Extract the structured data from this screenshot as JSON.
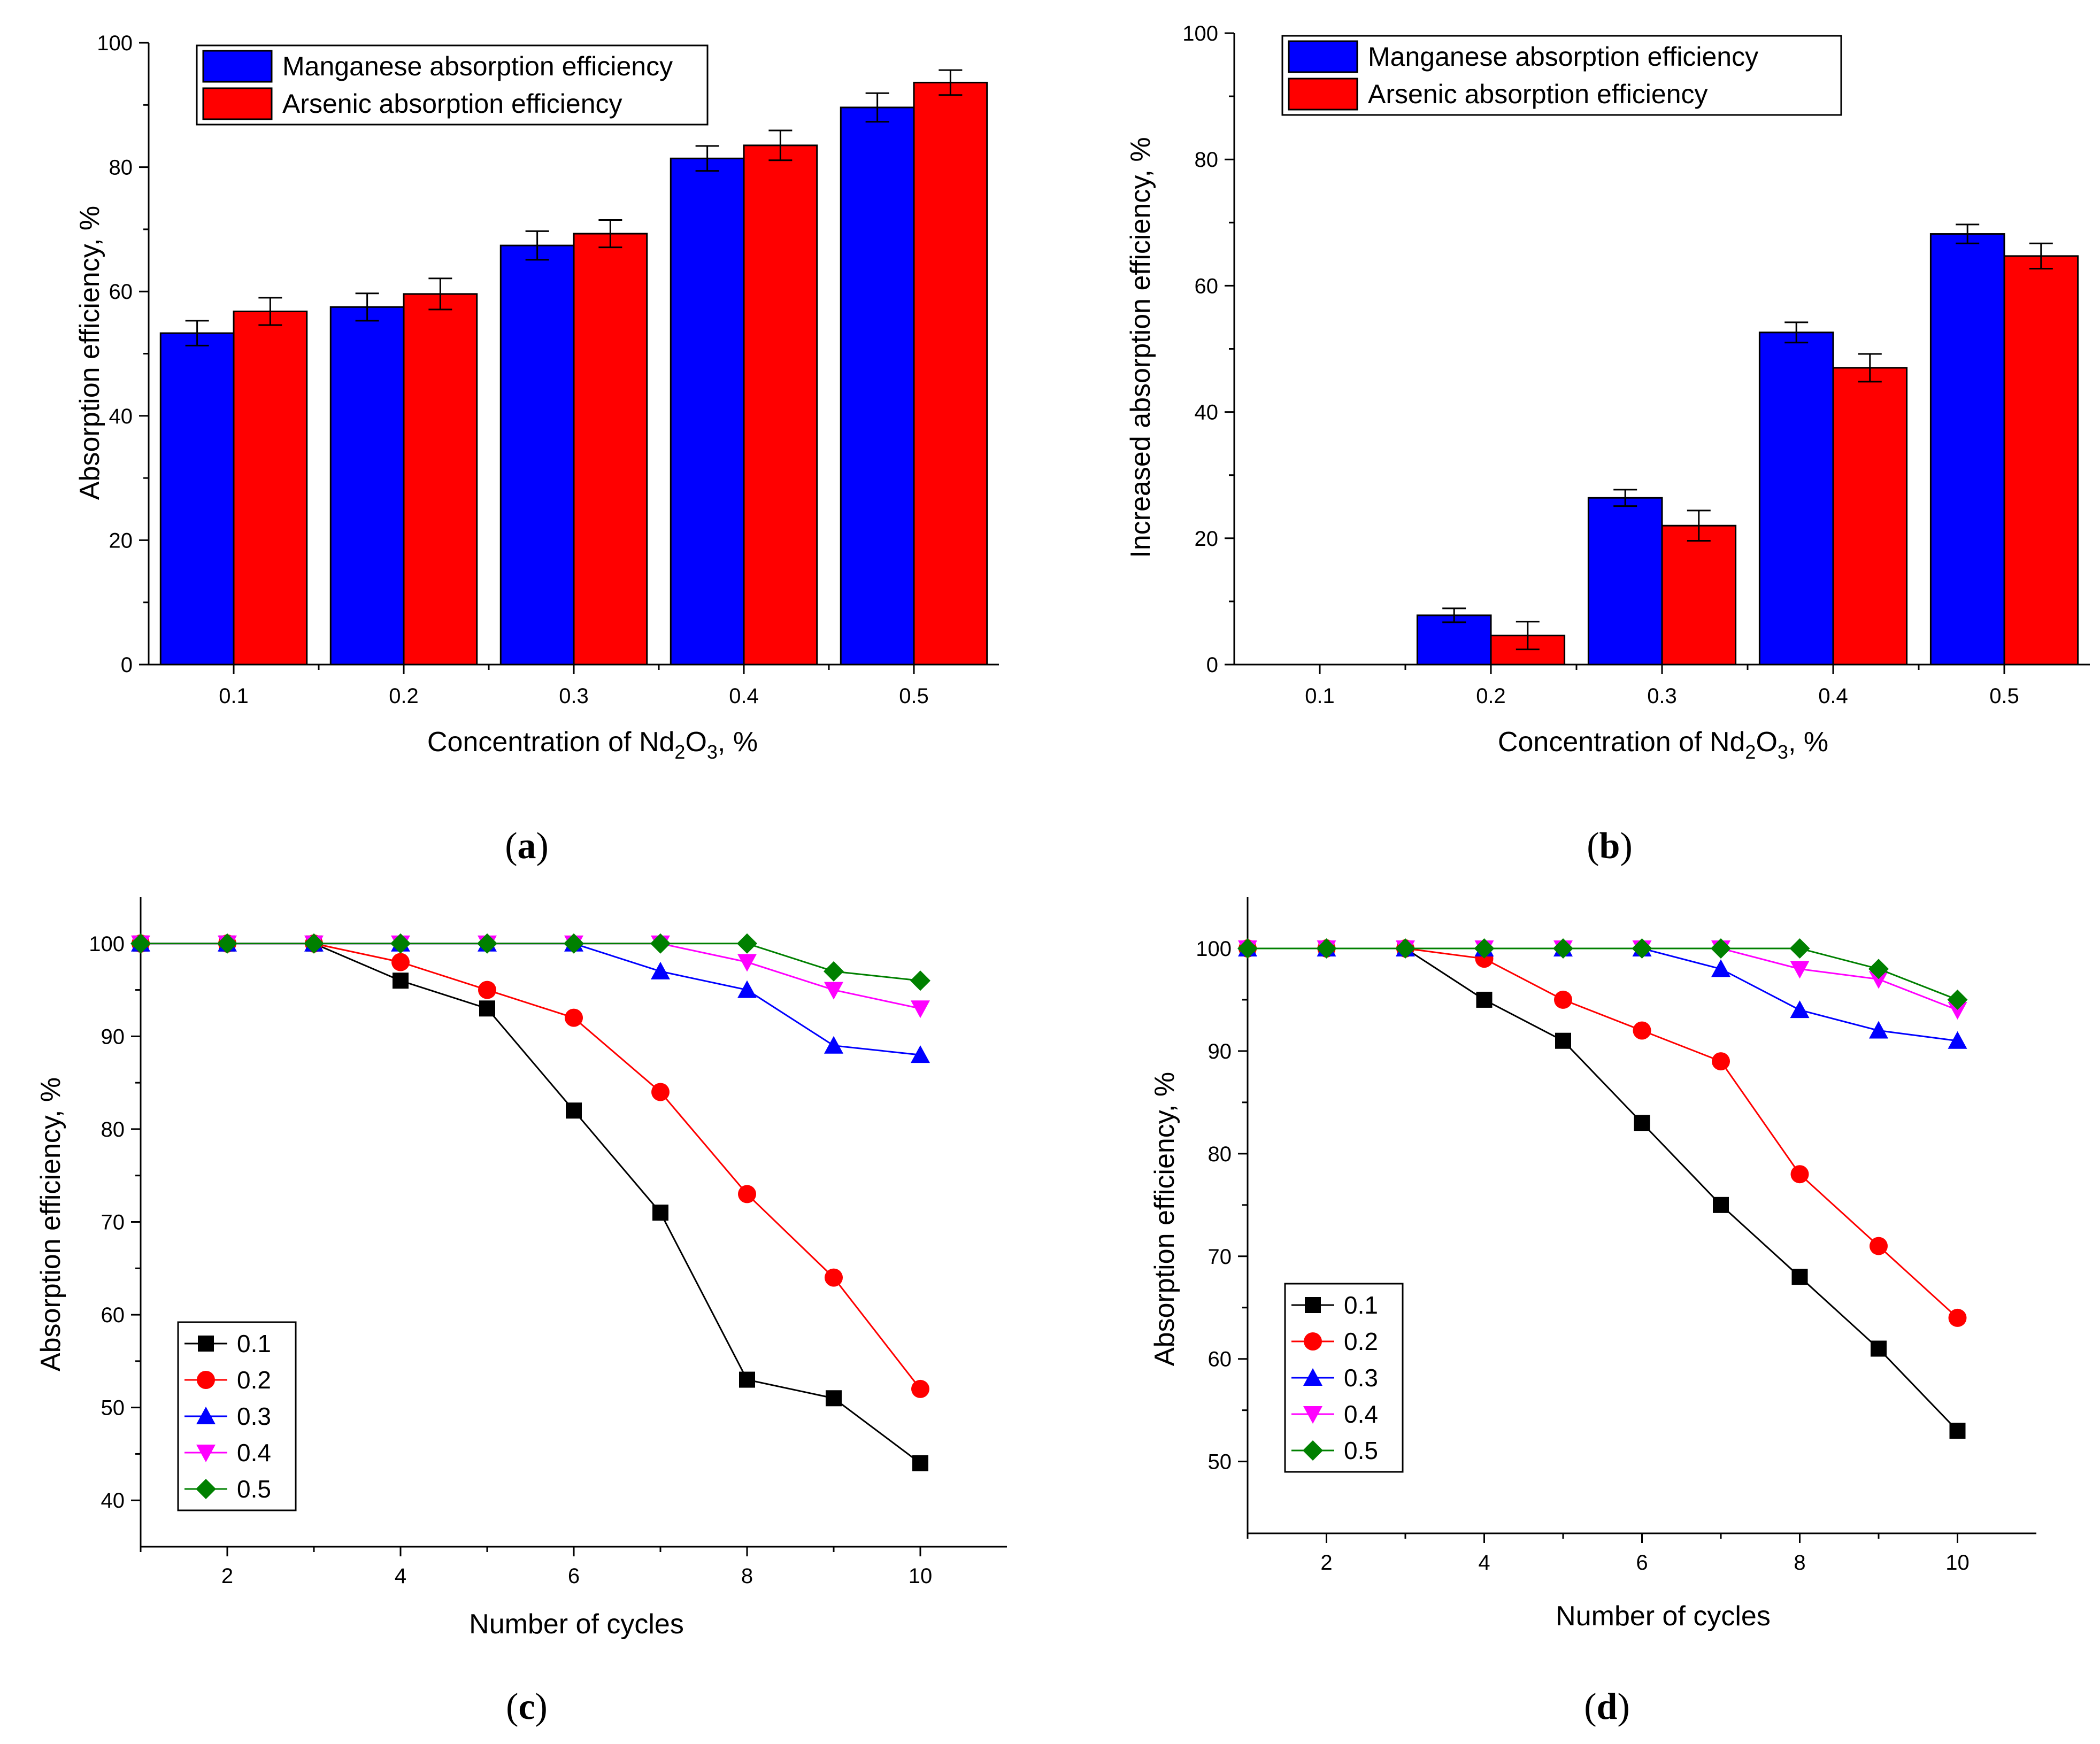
{
  "chart_data": [
    {
      "id": "a",
      "type": "bar",
      "caption": "a",
      "ylabel": "Absorption efficiency, %",
      "xlabel_parts": [
        "Concentration of Nd",
        "2",
        "O",
        "3",
        ", %"
      ],
      "categories": [
        "0.1",
        "0.2",
        "0.3",
        "0.4",
        "0.5"
      ],
      "ylim": [
        0,
        100
      ],
      "yticks": [
        "0",
        "20",
        "40",
        "60",
        "80",
        "100"
      ],
      "legend": "top-left",
      "series": [
        {
          "name": "Manganese absorption efficiency",
          "color": "#0000ff",
          "values": [
            53.3,
            57.5,
            67.4,
            81.4,
            89.6
          ],
          "errors": [
            2.0,
            2.2,
            2.3,
            2.0,
            2.3
          ]
        },
        {
          "name": "Arsenic absorption efficiency",
          "color": "#ff0000",
          "values": [
            56.8,
            59.6,
            69.3,
            83.5,
            93.6
          ],
          "errors": [
            2.2,
            2.5,
            2.2,
            2.4,
            2.0
          ]
        }
      ]
    },
    {
      "id": "b",
      "type": "bar",
      "caption": "b",
      "ylabel": "Increased absorption efficiency, %",
      "xlabel_parts": [
        "Concentration of Nd",
        "2",
        "O",
        "3",
        ", %"
      ],
      "categories": [
        "0.1",
        "0.2",
        "0.3",
        "0.4",
        "0.5"
      ],
      "ylim": [
        0,
        100
      ],
      "yticks": [
        "0",
        "20",
        "40",
        "60",
        "80",
        "100"
      ],
      "legend": "top-left",
      "series": [
        {
          "name": "Manganese absorption efficiency",
          "color": "#0000ff",
          "values": [
            0,
            7.8,
            26.4,
            52.6,
            68.2
          ],
          "errors": [
            0,
            1.1,
            1.3,
            1.6,
            1.5
          ]
        },
        {
          "name": "Arsenic absorption efficiency",
          "color": "#ff0000",
          "values": [
            0,
            4.6,
            22.0,
            47.0,
            64.7
          ],
          "errors": [
            0,
            2.2,
            2.4,
            2.2,
            2.0
          ]
        }
      ]
    },
    {
      "id": "c",
      "type": "line",
      "caption": "c",
      "ylabel": "Absorption efficiency, %",
      "xlabel": "Number of cycles",
      "x": [
        1,
        2,
        3,
        4,
        5,
        6,
        7,
        8,
        9,
        10
      ],
      "xlim": [
        1,
        11
      ],
      "ylim": [
        35,
        105
      ],
      "xticks": [
        "2",
        "4",
        "6",
        "8",
        "10"
      ],
      "yticks": [
        "40",
        "50",
        "60",
        "70",
        "80",
        "90",
        "100"
      ],
      "legend": "bottom-left",
      "series": [
        {
          "name": "0.1",
          "color": "#000000",
          "marker": "square",
          "values": [
            100,
            100,
            100,
            96,
            93,
            82,
            71,
            53,
            51,
            44
          ]
        },
        {
          "name": "0.2",
          "color": "#ff0000",
          "marker": "circle",
          "values": [
            100,
            100,
            100,
            98,
            95,
            92,
            84,
            73,
            64,
            52
          ]
        },
        {
          "name": "0.3",
          "color": "#0000ff",
          "marker": "triangle-up",
          "values": [
            100,
            100,
            100,
            100,
            100,
            100,
            97,
            95,
            89,
            88
          ]
        },
        {
          "name": "0.4",
          "color": "#ff00ff",
          "marker": "triangle-down",
          "values": [
            100,
            100,
            100,
            100,
            100,
            100,
            100,
            98,
            95,
            93
          ]
        },
        {
          "name": "0.5",
          "color": "#008000",
          "marker": "diamond",
          "values": [
            100,
            100,
            100,
            100,
            100,
            100,
            100,
            100,
            97,
            96
          ]
        }
      ]
    },
    {
      "id": "d",
      "type": "line",
      "caption": "d",
      "ylabel": "Absorption efficiency, %",
      "xlabel": "Number of cycles",
      "x": [
        1,
        2,
        3,
        4,
        5,
        6,
        7,
        8,
        9,
        10
      ],
      "xlim": [
        1,
        11
      ],
      "ylim": [
        43,
        105
      ],
      "xticks": [
        "2",
        "4",
        "6",
        "8",
        "10"
      ],
      "yticks": [
        "50",
        "60",
        "70",
        "80",
        "90",
        "100"
      ],
      "legend": "bottom-left",
      "series": [
        {
          "name": "0.1",
          "color": "#000000",
          "marker": "square",
          "values": [
            100,
            100,
            100,
            95,
            91,
            83,
            75,
            68,
            61,
            53
          ]
        },
        {
          "name": "0.2",
          "color": "#ff0000",
          "marker": "circle",
          "values": [
            100,
            100,
            100,
            99,
            95,
            92,
            89,
            78,
            71,
            64
          ]
        },
        {
          "name": "0.3",
          "color": "#0000ff",
          "marker": "triangle-up",
          "values": [
            100,
            100,
            100,
            100,
            100,
            100,
            98,
            94,
            92,
            91
          ]
        },
        {
          "name": "0.4",
          "color": "#ff00ff",
          "marker": "triangle-down",
          "values": [
            100,
            100,
            100,
            100,
            100,
            100,
            100,
            98,
            97,
            94
          ]
        },
        {
          "name": "0.5",
          "color": "#008000",
          "marker": "diamond",
          "values": [
            100,
            100,
            100,
            100,
            100,
            100,
            100,
            100,
            98,
            95
          ]
        }
      ]
    }
  ]
}
